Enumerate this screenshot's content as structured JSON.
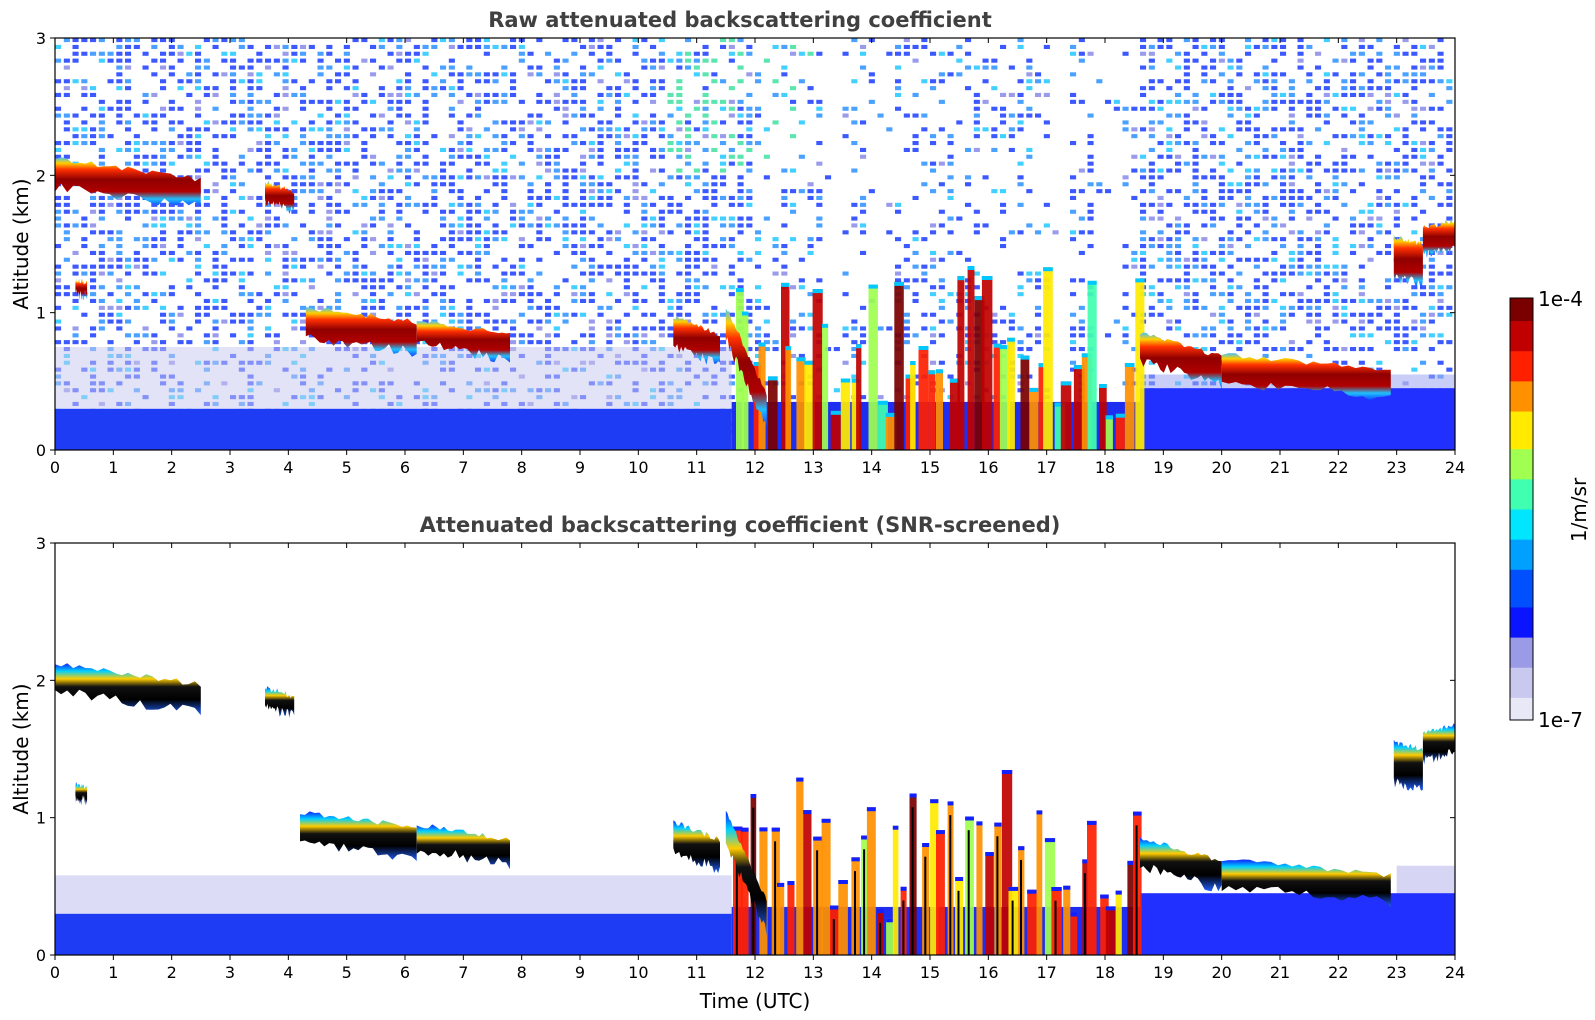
{
  "chart_data": [
    {
      "type": "heatmap",
      "title": "Raw attenuated backscattering coefficient",
      "xlabel": "",
      "ylabel": "Altitude (km)",
      "xlim": [
        0,
        24
      ],
      "ylim": [
        0,
        3
      ],
      "x_ticks": [
        "0",
        "1",
        "2",
        "3",
        "4",
        "5",
        "6",
        "7",
        "8",
        "9",
        "10",
        "11",
        "12",
        "13",
        "14",
        "15",
        "16",
        "17",
        "18",
        "19",
        "20",
        "21",
        "22",
        "23",
        "24"
      ],
      "y_ticks": [
        "0",
        "1",
        "2",
        "3"
      ],
      "screened": false,
      "layers": [
        {
          "t0": 0.0,
          "t1": 2.5,
          "z0": 2.12,
          "z1": 1.97,
          "thick": 0.16
        },
        {
          "t0": 3.6,
          "t1": 4.1,
          "z0": 1.95,
          "z1": 1.88,
          "thick": 0.1
        },
        {
          "t0": 0.35,
          "t1": 0.55,
          "z0": 1.24,
          "z1": 1.22,
          "thick": 0.06
        },
        {
          "t0": 4.3,
          "t1": 6.2,
          "z0": 1.04,
          "z1": 0.93,
          "thick": 0.18
        },
        {
          "t0": 6.2,
          "t1": 7.8,
          "z0": 0.95,
          "z1": 0.84,
          "thick": 0.14
        },
        {
          "t0": 10.6,
          "t1": 11.4,
          "z0": 0.97,
          "z1": 0.84,
          "thick": 0.18
        },
        {
          "t0": 11.5,
          "t1": 12.2,
          "z0": 1.05,
          "z1": 0.4,
          "thick": 0.2
        },
        {
          "t0": 18.6,
          "t1": 20.0,
          "z0": 0.85,
          "z1": 0.68,
          "thick": 0.16
        },
        {
          "t0": 20.0,
          "t1": 22.9,
          "z0": 0.7,
          "z1": 0.58,
          "thick": 0.16
        },
        {
          "t0": 22.95,
          "t1": 23.45,
          "z0": 1.55,
          "z1": 1.5,
          "thick": 0.25
        },
        {
          "t0": 23.45,
          "t1": 24.0,
          "z0": 1.62,
          "z1": 1.67,
          "thick": 0.16
        }
      ],
      "convection": {
        "t0": 11.6,
        "t1": 18.6,
        "top_km": 1.35
      },
      "clear_gaps": [
        [
          13.2,
          13.5
        ],
        [
          14.0,
          14.35
        ],
        [
          17.05,
          17.45
        ],
        [
          17.8,
          18.3
        ]
      ]
    },
    {
      "type": "heatmap",
      "title": "Attenuated backscattering coefficient (SNR-screened)",
      "xlabel": "Time (UTC)",
      "ylabel": "Altitude (km)",
      "xlim": [
        0,
        24
      ],
      "ylim": [
        0,
        3
      ],
      "x_ticks": [
        "0",
        "1",
        "2",
        "3",
        "4",
        "5",
        "6",
        "7",
        "8",
        "9",
        "10",
        "11",
        "12",
        "13",
        "14",
        "15",
        "16",
        "17",
        "18",
        "19",
        "20",
        "21",
        "22",
        "23",
        "24"
      ],
      "y_ticks": [
        "0",
        "1",
        "2",
        "3"
      ],
      "screened": true,
      "layers": [
        {
          "t0": 0.0,
          "t1": 2.5,
          "z0": 2.12,
          "z1": 1.97,
          "thick": 0.16
        },
        {
          "t0": 3.6,
          "t1": 4.1,
          "z0": 1.95,
          "z1": 1.88,
          "thick": 0.1
        },
        {
          "t0": 0.35,
          "t1": 0.55,
          "z0": 1.24,
          "z1": 1.22,
          "thick": 0.06
        },
        {
          "t0": 4.2,
          "t1": 6.2,
          "z0": 1.04,
          "z1": 0.93,
          "thick": 0.18
        },
        {
          "t0": 6.2,
          "t1": 7.8,
          "z0": 0.95,
          "z1": 0.84,
          "thick": 0.14
        },
        {
          "t0": 10.6,
          "t1": 11.4,
          "z0": 0.97,
          "z1": 0.84,
          "thick": 0.18
        },
        {
          "t0": 11.5,
          "t1": 12.2,
          "z0": 1.05,
          "z1": 0.4,
          "thick": 0.2
        },
        {
          "t0": 18.6,
          "t1": 20.0,
          "z0": 0.85,
          "z1": 0.68,
          "thick": 0.16
        },
        {
          "t0": 20.0,
          "t1": 22.9,
          "z0": 0.7,
          "z1": 0.58,
          "thick": 0.16
        },
        {
          "t0": 22.95,
          "t1": 23.45,
          "z0": 1.55,
          "z1": 1.5,
          "thick": 0.25
        },
        {
          "t0": 23.45,
          "t1": 24.0,
          "z0": 1.62,
          "z1": 1.67,
          "thick": 0.16
        }
      ],
      "convection": {
        "t0": 11.6,
        "t1": 18.6,
        "top_km": 1.35
      },
      "clear_gaps": [
        [
          13.2,
          13.5
        ],
        [
          14.0,
          14.35
        ],
        [
          17.05,
          17.45
        ],
        [
          17.8,
          18.3
        ]
      ]
    }
  ],
  "colorbar": {
    "label": "1/m/sr",
    "max_label": "1e-4",
    "min_label": "1e-7",
    "colors": [
      "#e8e8f7",
      "#c9c9ef",
      "#9a9ae6",
      "#0a14ff",
      "#0050ff",
      "#00a0ff",
      "#00e6ff",
      "#40ffb0",
      "#a0ff50",
      "#ffea00",
      "#ff9000",
      "#ff2000",
      "#c00000",
      "#7a0000"
    ]
  }
}
